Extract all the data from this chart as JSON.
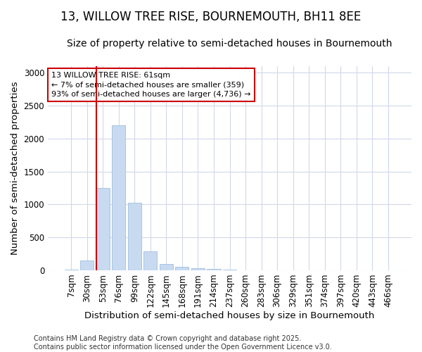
{
  "title_line1": "13, WILLOW TREE RISE, BOURNEMOUTH, BH11 8EE",
  "title_line2": "Size of property relative to semi-detached houses in Bournemouth",
  "xlabel": "Distribution of semi-detached houses by size in Bournemouth",
  "ylabel": "Number of semi-detached properties",
  "categories": [
    "7sqm",
    "30sqm",
    "53sqm",
    "76sqm",
    "99sqm",
    "122sqm",
    "145sqm",
    "168sqm",
    "191sqm",
    "214sqm",
    "237sqm",
    "260sqm",
    "283sqm",
    "306sqm",
    "329sqm",
    "351sqm",
    "374sqm",
    "397sqm",
    "420sqm",
    "443sqm",
    "466sqm"
  ],
  "values": [
    10,
    150,
    1250,
    2200,
    1030,
    290,
    100,
    55,
    30,
    20,
    5,
    0,
    0,
    0,
    0,
    0,
    0,
    0,
    0,
    0,
    0
  ],
  "bar_color": "#c8daf0",
  "bar_edge_color": "#a0bedd",
  "vline_color": "#cc0000",
  "vline_x_index": 2,
  "annotation_title": "13 WILLOW TREE RISE: 61sqm",
  "annotation_line2": "← 7% of semi-detached houses are smaller (359)",
  "annotation_line3": "93% of semi-detached houses are larger (4,736) →",
  "annotation_box_color": "white",
  "annotation_border_color": "#cc0000",
  "ylim": [
    0,
    3100
  ],
  "yticks": [
    0,
    500,
    1000,
    1500,
    2000,
    2500,
    3000
  ],
  "grid_color": "#d0d8e8",
  "background_color": "#ffffff",
  "footer_line1": "Contains HM Land Registry data © Crown copyright and database right 2025.",
  "footer_line2": "Contains public sector information licensed under the Open Government Licence v3.0.",
  "title_fontsize": 12,
  "subtitle_fontsize": 10,
  "axis_label_fontsize": 9.5,
  "tick_fontsize": 8.5,
  "footer_fontsize": 7
}
